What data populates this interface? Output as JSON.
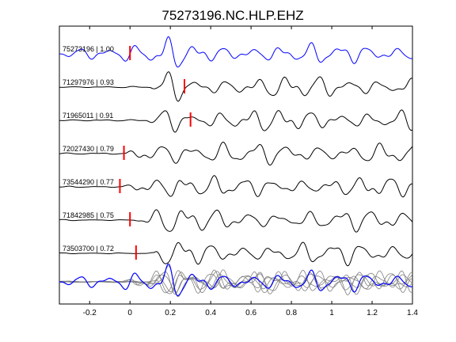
{
  "title": "75273196.NC.HLP.EHZ",
  "chart_data": {
    "type": "line",
    "title": "75273196.NC.HLP.EHZ",
    "xlabel": "",
    "ylabel": "",
    "xlim": [
      -0.35,
      1.4
    ],
    "xticks": [
      -0.2,
      0,
      0.2,
      0.4,
      0.6,
      0.8,
      1,
      1.2,
      1.4
    ],
    "xtick_labels": [
      "-0.2",
      "0",
      "0.2",
      "0.4",
      "0.6",
      "0.8",
      "1",
      "1.2",
      "1.4"
    ],
    "grid": false,
    "legend": "none",
    "series": [
      {
        "name": "75273196 | 1.00",
        "color": "#0000ff",
        "pick_time": 0.0,
        "onset": -0.35,
        "amplitude": 0.9,
        "freq": 7.0,
        "phase": 0.0
      },
      {
        "name": "71297976 | 0.93",
        "color": "#000000",
        "pick_time": 0.27,
        "onset": 0.1,
        "amplitude": 1.0,
        "freq": 6.6,
        "phase": 0.6
      },
      {
        "name": "71965011 | 0.91",
        "color": "#000000",
        "pick_time": 0.3,
        "onset": 0.08,
        "amplitude": 1.0,
        "freq": 6.8,
        "phase": 1.1
      },
      {
        "name": "72027430 | 0.79",
        "color": "#000000",
        "pick_time": -0.03,
        "onset": -0.02,
        "amplitude": 1.0,
        "freq": 6.4,
        "phase": 1.7
      },
      {
        "name": "73544290 | 0.77",
        "color": "#000000",
        "pick_time": -0.05,
        "onset": -0.04,
        "amplitude": 0.9,
        "freq": 6.9,
        "phase": 2.3
      },
      {
        "name": "71842985 | 0.75",
        "color": "#000000",
        "pick_time": 0.0,
        "onset": 0.02,
        "amplitude": 0.95,
        "freq": 6.5,
        "phase": 2.9
      },
      {
        "name": "73503700 | 0.72",
        "color": "#000000",
        "pick_time": 0.03,
        "onset": 0.12,
        "amplitude": 1.0,
        "freq": 6.7,
        "phase": 3.4
      }
    ],
    "pick_color": "#ff0000",
    "overlay": {
      "color_primary": "#0000ff",
      "color_others": "#808080"
    }
  }
}
